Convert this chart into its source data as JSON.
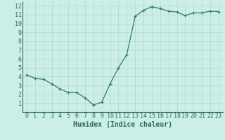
{
  "xlabel": "Humidex (Indice chaleur)",
  "x": [
    0,
    1,
    2,
    3,
    4,
    5,
    6,
    7,
    8,
    9,
    10,
    11,
    12,
    13,
    14,
    15,
    16,
    17,
    18,
    19,
    20,
    21,
    22,
    23
  ],
  "y": [
    4.2,
    3.8,
    3.7,
    3.2,
    2.6,
    2.2,
    2.2,
    1.6,
    0.8,
    1.1,
    3.2,
    5.0,
    6.5,
    10.8,
    11.5,
    11.9,
    11.7,
    11.4,
    11.3,
    10.9,
    11.2,
    11.2,
    11.4,
    11.35
  ],
  "ylim": [
    0,
    12.5
  ],
  "xlim": [
    -0.5,
    23.5
  ],
  "yticks": [
    1,
    2,
    3,
    4,
    5,
    6,
    7,
    8,
    9,
    10,
    11,
    12
  ],
  "xticks": [
    0,
    1,
    2,
    3,
    4,
    5,
    6,
    7,
    8,
    9,
    10,
    11,
    12,
    13,
    14,
    15,
    16,
    17,
    18,
    19,
    20,
    21,
    22,
    23
  ],
  "line_color": "#2e7d6e",
  "marker": "+",
  "bg_color": "#cceee8",
  "grid_color": "#b0d8d0",
  "tick_label_color": "#2e6b5e",
  "xlabel_color": "#2e6b5e",
  "tick_fontsize": 6,
  "xlabel_fontsize": 7,
  "markersize": 3,
  "linewidth": 0.9
}
